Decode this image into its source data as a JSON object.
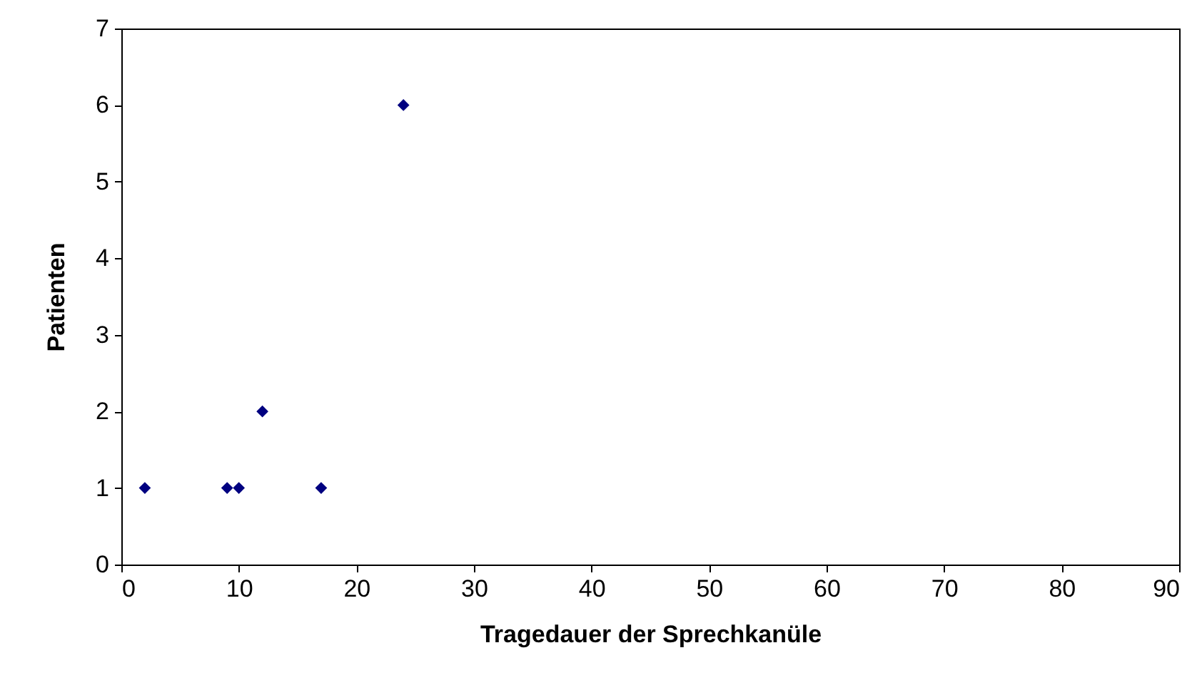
{
  "chart_data": {
    "type": "scatter",
    "xlabel": "Tragedauer der Sprechkanüle",
    "ylabel": "Patienten",
    "x": [
      2,
      9,
      10,
      12,
      17,
      24
    ],
    "series": [
      {
        "color": "#000080",
        "values": [
          1,
          1,
          1,
          2,
          1,
          6
        ]
      }
    ],
    "xlim": [
      0,
      90
    ],
    "xticks": [
      0,
      10,
      20,
      30,
      40,
      50,
      60,
      70,
      80,
      90
    ],
    "ylim": [
      0,
      7
    ],
    "yticks": [
      0,
      1,
      2,
      3,
      4,
      5,
      6,
      7
    ],
    "grid": false,
    "marker": "diamond"
  }
}
